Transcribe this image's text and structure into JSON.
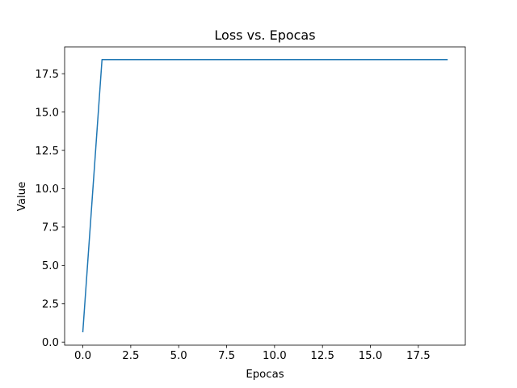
{
  "chart_data": {
    "type": "line",
    "title": "Loss vs. Epocas",
    "xlabel": "Epocas",
    "ylabel": "Value",
    "xlim": [
      -0.95,
      19.95
    ],
    "ylim": [
      -0.2,
      19.25
    ],
    "xticks": [
      0.0,
      2.5,
      5.0,
      7.5,
      10.0,
      12.5,
      15.0,
      17.5
    ],
    "xtick_labels": [
      "0.0",
      "2.5",
      "5.0",
      "7.5",
      "10.0",
      "12.5",
      "15.0",
      "17.5"
    ],
    "yticks": [
      0.0,
      2.5,
      5.0,
      7.5,
      10.0,
      12.5,
      15.0,
      17.5
    ],
    "ytick_labels": [
      "0.0",
      "2.5",
      "5.0",
      "7.5",
      "10.0",
      "12.5",
      "15.0",
      "17.5"
    ],
    "grid": false,
    "series": [
      {
        "color": "#1f77b4",
        "x": [
          0,
          1,
          2,
          3,
          4,
          5,
          6,
          7,
          8,
          9,
          10,
          11,
          12,
          13,
          14,
          15,
          16,
          17,
          18,
          19
        ],
        "y": [
          0.68,
          18.42,
          18.42,
          18.42,
          18.42,
          18.42,
          18.42,
          18.42,
          18.42,
          18.42,
          18.42,
          18.42,
          18.42,
          18.42,
          18.42,
          18.42,
          18.42,
          18.42,
          18.42,
          18.42
        ]
      }
    ]
  }
}
